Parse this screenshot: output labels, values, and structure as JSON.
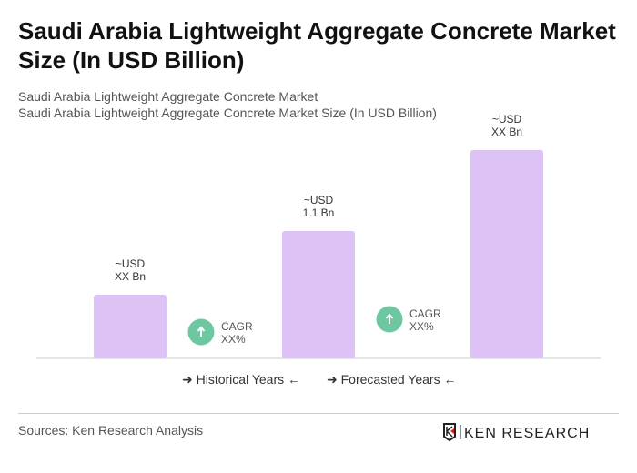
{
  "title": "Saudi Arabia Lightweight Aggregate Concrete Market Size (In USD Billion)",
  "subtitle1": "Saudi Arabia Lightweight Aggregate Concrete Market",
  "subtitle2": "Saudi Arabia Lightweight Aggregate Concrete Market Size (In USD Billion)",
  "chart_data": {
    "type": "bar",
    "values": [
      0.55,
      1.1,
      1.8
    ],
    "data_labels": [
      [
        "~USD",
        "XX Bn"
      ],
      [
        "~USD",
        "1.1 Bn"
      ],
      [
        "~USD",
        "XX Bn"
      ]
    ],
    "bar_color": "#dcc2f5",
    "cagr": [
      {
        "label": "CAGR",
        "value": "XX%"
      },
      {
        "label": "CAGR",
        "value": "XX%"
      }
    ],
    "cagr_color": "#6fc7a1",
    "legend": [
      "Historical Years",
      "Forecasted Years"
    ],
    "grid": false
  },
  "source": "Sources: Ken Research Analysis",
  "logo_text": "KEN RESEARCH"
}
